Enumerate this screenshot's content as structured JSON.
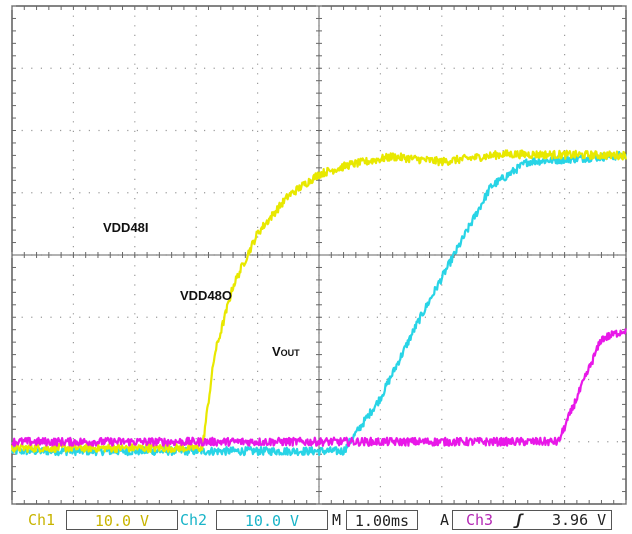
{
  "chart_data": {
    "type": "line",
    "title": "",
    "xlabel": "",
    "ylabel": "",
    "grid": true,
    "x_divisions": 10,
    "y_divisions": 8,
    "time_per_div_ms": 1.0,
    "xlim_ms": [
      0,
      10
    ],
    "ylim_div": [
      -4,
      4
    ],
    "series": [
      {
        "name": "VDD48I",
        "channel": "Ch1",
        "color": "#e8e800",
        "volts_per_div": 10.0,
        "points_ms_div": [
          [
            0,
            -3.1
          ],
          [
            3.1,
            -3.1
          ],
          [
            3.3,
            -1.6
          ],
          [
            3.6,
            -0.5
          ],
          [
            4.0,
            0.35
          ],
          [
            4.5,
            0.95
          ],
          [
            5.0,
            1.3
          ],
          [
            5.5,
            1.45
          ],
          [
            6.2,
            1.58
          ],
          [
            7.0,
            1.5
          ],
          [
            8.0,
            1.62
          ],
          [
            10.0,
            1.6
          ]
        ]
      },
      {
        "name": "VDD48O",
        "channel": "Ch2",
        "color": "#28d4e6",
        "volts_per_div": 10.0,
        "points_ms_div": [
          [
            0,
            -3.15
          ],
          [
            5.4,
            -3.15
          ],
          [
            6.0,
            -2.3
          ],
          [
            6.6,
            -1.1
          ],
          [
            7.2,
            0.0
          ],
          [
            7.8,
            1.1
          ],
          [
            8.4,
            1.5
          ],
          [
            10.0,
            1.6
          ]
        ]
      },
      {
        "name": "VOUT",
        "channel": "Ch3",
        "color": "#e818e8",
        "points_ms_div": [
          [
            0,
            -3.0
          ],
          [
            8.9,
            -3.0
          ],
          [
            9.6,
            -1.35
          ],
          [
            10.0,
            -1.2
          ]
        ]
      }
    ],
    "labels": {
      "ch1_text": "VDD48I",
      "ch2_text": "VDD48O",
      "ch3_prefix": "V",
      "ch3_suffix": "OUT"
    }
  },
  "status": {
    "ch1_name": "Ch1",
    "ch1_scale": "10.0 V",
    "ch2_name": "Ch2",
    "ch2_scale": "10.0 V",
    "m_label": "M",
    "timebase": "1.00ms",
    "a_label": "A",
    "trig_source": "Ch3",
    "trig_slope": "ʃ",
    "trig_level": "3.96 V"
  }
}
